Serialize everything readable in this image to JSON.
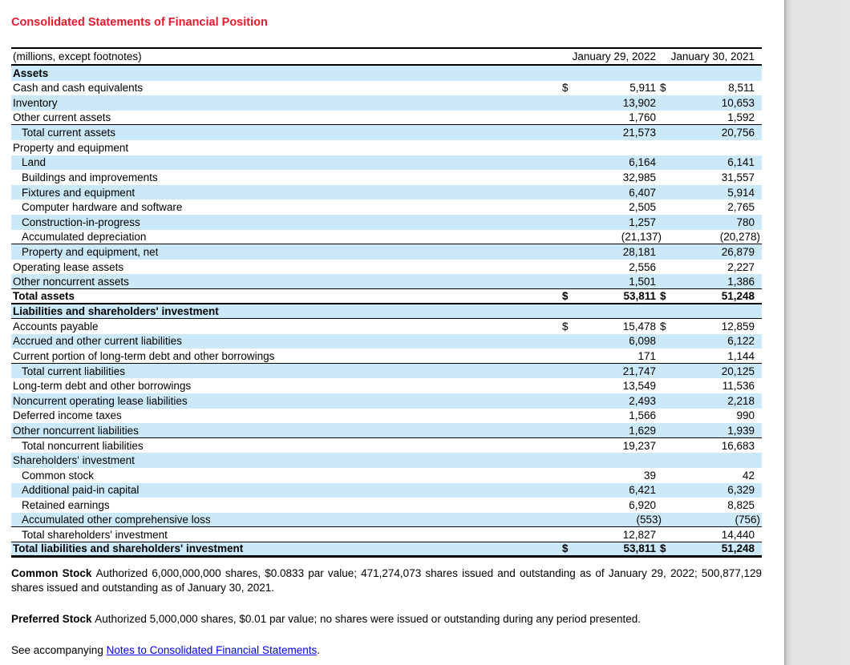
{
  "page": {
    "title": "Consolidated Statements of Financial Position"
  },
  "colors": {
    "title_red": "#e8192d",
    "row_shade_blue": "#cce9f9",
    "link_blue": "#0000ee",
    "viewer_gray": "#e5e5e5",
    "border_black": "#000000"
  },
  "table": {
    "unit_label": "(millions, except footnotes)",
    "col_headers": [
      "January 29, 2022",
      "January 30, 2021"
    ],
    "rows": [
      {
        "label": "Assets",
        "v1": "",
        "v2": "",
        "shade": true,
        "bold": true
      },
      {
        "label": "Cash and cash equivalents",
        "v1": "5,911",
        "v2": "8,511",
        "dollar": true
      },
      {
        "label": "Inventory",
        "v1": "13,902",
        "v2": "10,653",
        "shade": true
      },
      {
        "label": "Other current assets",
        "v1": "1,760",
        "v2": "1,592",
        "border": "thin"
      },
      {
        "label": "Total current assets",
        "v1": "21,573",
        "v2": "20,756",
        "shade": true,
        "indent": true
      },
      {
        "label": "Property and equipment",
        "v1": "",
        "v2": ""
      },
      {
        "label": "Land",
        "v1": "6,164",
        "v2": "6,141",
        "shade": true,
        "indent": true
      },
      {
        "label": "Buildings and improvements",
        "v1": "32,985",
        "v2": "31,557",
        "indent": true
      },
      {
        "label": "Fixtures and equipment",
        "v1": "6,407",
        "v2": "5,914",
        "shade": true,
        "indent": true
      },
      {
        "label": "Computer hardware and software",
        "v1": "2,505",
        "v2": "2,765",
        "indent": true
      },
      {
        "label": "Construction-in-progress",
        "v1": "1,257",
        "v2": "780",
        "shade": true,
        "indent": true
      },
      {
        "label": "Accumulated depreciation",
        "v1": "(21,137)",
        "v2": "(20,278)",
        "indent": true,
        "border": "thin"
      },
      {
        "label": "Property and equipment, net",
        "v1": "28,181",
        "v2": "26,879",
        "shade": true,
        "indent": true
      },
      {
        "label": "Operating lease assets",
        "v1": "2,556",
        "v2": "2,227"
      },
      {
        "label": "Other noncurrent assets",
        "v1": "1,501",
        "v2": "1,386",
        "shade": true,
        "border": "thin"
      },
      {
        "label": "Total assets",
        "v1": "53,811",
        "v2": "51,248",
        "bold": true,
        "dollar": true,
        "border": "thick"
      },
      {
        "label": "Liabilities and shareholders' investment",
        "v1": "",
        "v2": "",
        "shade": true,
        "bold": true,
        "border": "thin"
      },
      {
        "label": "Accounts payable",
        "v1": "15,478",
        "v2": "12,859",
        "dollar": true
      },
      {
        "label": "Accrued and other current liabilities",
        "v1": "6,098",
        "v2": "6,122",
        "shade": true
      },
      {
        "label": "Current portion of long-term debt and other borrowings",
        "v1": "171",
        "v2": "1,144",
        "border": "thin"
      },
      {
        "label": "Total current liabilities",
        "v1": "21,747",
        "v2": "20,125",
        "shade": true,
        "indent": true
      },
      {
        "label": "Long-term debt and other borrowings",
        "v1": "13,549",
        "v2": "11,536"
      },
      {
        "label": "Noncurrent operating lease liabilities",
        "v1": "2,493",
        "v2": "2,218",
        "shade": true
      },
      {
        "label": "Deferred income taxes",
        "v1": "1,566",
        "v2": "990"
      },
      {
        "label": "Other noncurrent liabilities",
        "v1": "1,629",
        "v2": "1,939",
        "shade": true,
        "border": "thin"
      },
      {
        "label": "Total noncurrent liabilities",
        "v1": "19,237",
        "v2": "16,683",
        "indent": true
      },
      {
        "label": "Shareholders' investment",
        "v1": "",
        "v2": "",
        "shade": true
      },
      {
        "label": "Common stock",
        "v1": "39",
        "v2": "42",
        "indent": true
      },
      {
        "label": "Additional paid-in capital",
        "v1": "6,421",
        "v2": "6,329",
        "shade": true,
        "indent": true
      },
      {
        "label": "Retained earnings",
        "v1": "6,920",
        "v2": "8,825",
        "indent": true
      },
      {
        "label": "Accumulated other comprehensive loss",
        "v1": "(553)",
        "v2": "(756)",
        "shade": true,
        "indent": true,
        "border": "thin"
      },
      {
        "label": "Total shareholders' investment",
        "v1": "12,827",
        "v2": "14,440",
        "indent": true,
        "border": "thin"
      },
      {
        "label": "Total liabilities and shareholders' investment",
        "v1": "53,811",
        "v2": "51,248",
        "shade": true,
        "bold": true,
        "dollar": true,
        "border": "xthick"
      }
    ],
    "dollar_sign": "$"
  },
  "footnotes": {
    "common_stock_bold": "Common Stock ",
    "common_stock_text": "Authorized 6,000,000,000 shares, $0.0833 par value; 471,274,073 shares issued and outstanding as of January 29, 2022; 500,877,129 shares issued and outstanding as of January 30, 2021.",
    "preferred_stock_bold": "Preferred Stock ",
    "preferred_stock_text": "Authorized 5,000,000 shares, $0.01 par value; no shares were issued or outstanding during any period presented.",
    "see_prefix": "See accompanying ",
    "link_text": "Notes to Consolidated Financial Statements",
    "see_suffix": "."
  }
}
